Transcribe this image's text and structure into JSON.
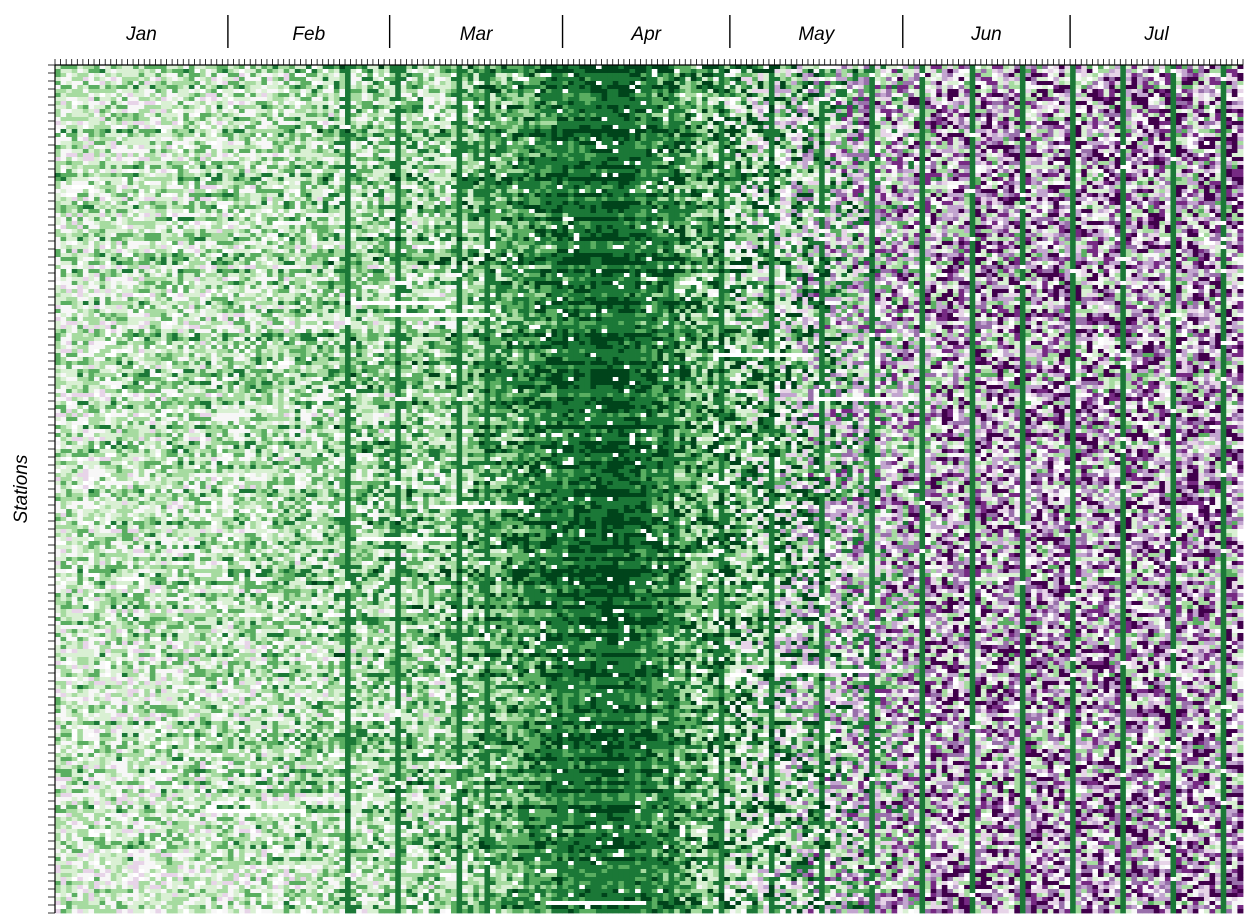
{
  "chart_data": {
    "type": "heatmap",
    "title": "",
    "xlabel": "",
    "ylabel": "Stations",
    "x_axis_position": "top",
    "month_labels": [
      "Jan",
      "Feb",
      "Mar",
      "Apr",
      "May",
      "Jun",
      "Jul"
    ],
    "month_days": [
      31,
      29,
      31,
      30,
      31,
      30,
      31
    ],
    "n_days": 213,
    "n_stations": 212,
    "colormap": "PRGn",
    "colormap_stops": [
      "#40004b",
      "#762a83",
      "#9970ab",
      "#c2a5cf",
      "#e7d4e8",
      "#f7f7f7",
      "#d9f0d3",
      "#a6dba0",
      "#5aae61",
      "#1b7837",
      "#00441b"
    ],
    "gap_color": "#ffffff",
    "daily_profile": [
      {
        "day": 0,
        "mean": 0.25,
        "spread": 0.38
      },
      {
        "day": 30,
        "mean": 0.3,
        "spread": 0.4
      },
      {
        "day": 50,
        "mean": 0.38,
        "spread": 0.42
      },
      {
        "day": 70,
        "mean": 0.42,
        "spread": 0.45
      },
      {
        "day": 85,
        "mean": 0.75,
        "spread": 0.3
      },
      {
        "day": 100,
        "mean": 0.9,
        "spread": 0.12
      },
      {
        "day": 135,
        "mean": 0.25,
        "spread": 0.9
      },
      {
        "day": 160,
        "mean": -0.35,
        "spread": 0.9
      },
      {
        "day": 213,
        "mean": -0.35,
        "spread": 0.9
      }
    ],
    "strong_days": [
      52,
      61,
      72,
      77,
      90,
      93,
      97,
      100,
      103,
      106,
      110,
      119,
      128,
      137,
      146,
      155,
      164,
      173,
      182,
      191,
      200,
      209
    ],
    "row_gap_rate": 0.04,
    "cell_gap_rate": 0.04
  }
}
